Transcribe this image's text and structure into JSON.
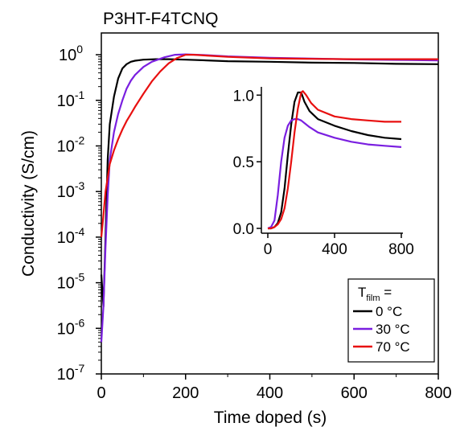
{
  "chart_data": [
    {
      "type": "line",
      "title": "P3HT-F4TCNQ",
      "xlabel": "Time doped (s)",
      "ylabel": "Conductivity (S/cm)",
      "xlim": [
        0,
        800
      ],
      "ylim": [
        1e-07,
        3
      ],
      "yscale": "log",
      "x_ticks": [
        "0",
        "200",
        "400",
        "600",
        "800"
      ],
      "y_ticks": [
        {
          "base": "10",
          "exp": "0"
        },
        {
          "base": "10",
          "exp": "-1"
        },
        {
          "base": "10",
          "exp": "-2"
        },
        {
          "base": "10",
          "exp": "-3"
        },
        {
          "base": "10",
          "exp": "-4"
        },
        {
          "base": "10",
          "exp": "-5"
        },
        {
          "base": "10",
          "exp": "-6"
        },
        {
          "base": "10",
          "exp": "-7"
        }
      ],
      "legend": {
        "title_main": "T",
        "title_sub": "film",
        "title_suffix": " =",
        "placement": "bottom-right"
      },
      "series": [
        {
          "name": "0 °C",
          "color": "#000000",
          "x": [
            0,
            5,
            10,
            15,
            20,
            30,
            40,
            50,
            60,
            70,
            80,
            100,
            130,
            160,
            200,
            250,
            300,
            400,
            500,
            600,
            700,
            800
          ],
          "y": [
            1.5e-05,
            3e-06,
            0.0001,
            0.005,
            0.03,
            0.12,
            0.3,
            0.5,
            0.62,
            0.7,
            0.74,
            0.78,
            0.8,
            0.8,
            0.78,
            0.75,
            0.72,
            0.7,
            0.67,
            0.66,
            0.63,
            0.62
          ]
        },
        {
          "name": "30 °C",
          "color": "#7a1fe0",
          "x": [
            0,
            5,
            10,
            15,
            20,
            30,
            40,
            50,
            60,
            70,
            80,
            100,
            120,
            150,
            175,
            200,
            250,
            300,
            400,
            500,
            600,
            700,
            800
          ],
          "y": [
            5e-07,
            3e-06,
            6e-05,
            0.0008,
            0.005,
            0.02,
            0.05,
            0.1,
            0.18,
            0.27,
            0.36,
            0.54,
            0.7,
            0.88,
            1.0,
            1.02,
            0.98,
            0.92,
            0.86,
            0.82,
            0.79,
            0.77,
            0.75
          ]
        },
        {
          "name": "70 °C",
          "color": "#e81010",
          "x": [
            0,
            5,
            10,
            15,
            20,
            30,
            40,
            50,
            60,
            70,
            80,
            100,
            120,
            140,
            160,
            180,
            200,
            220,
            250,
            300,
            400,
            500,
            600,
            700,
            800
          ],
          "y": [
            0.0001,
            0.0003,
            0.001,
            0.002,
            0.004,
            0.008,
            0.014,
            0.023,
            0.035,
            0.05,
            0.072,
            0.14,
            0.26,
            0.43,
            0.65,
            0.85,
            1.0,
            1.0,
            0.96,
            0.9,
            0.83,
            0.81,
            0.8,
            0.8,
            0.8
          ]
        }
      ]
    },
    {
      "type": "line",
      "title": "",
      "xlabel": "",
      "ylabel": "",
      "xlim": [
        0,
        800
      ],
      "ylim": [
        0,
        1.05
      ],
      "x_ticks": [
        "0",
        "400",
        "800"
      ],
      "y_ticks": [
        "0.0",
        "0.5",
        "1.0"
      ],
      "series": [
        {
          "name": "0 °C",
          "color": "#000000",
          "x": [
            0,
            20,
            40,
            60,
            80,
            100,
            120,
            140,
            160,
            180,
            200,
            220,
            250,
            300,
            400,
            500,
            600,
            700,
            800
          ],
          "y": [
            0.0,
            0.0,
            0.01,
            0.04,
            0.12,
            0.3,
            0.55,
            0.78,
            0.95,
            1.02,
            1.02,
            0.95,
            0.88,
            0.82,
            0.77,
            0.73,
            0.7,
            0.68,
            0.67
          ]
        },
        {
          "name": "30 °C",
          "color": "#7a1fe0",
          "x": [
            0,
            20,
            40,
            60,
            80,
            100,
            120,
            140,
            160,
            180,
            200,
            250,
            300,
            400,
            500,
            600,
            700,
            800
          ],
          "y": [
            0.0,
            0.01,
            0.06,
            0.25,
            0.5,
            0.68,
            0.77,
            0.81,
            0.82,
            0.82,
            0.81,
            0.76,
            0.72,
            0.68,
            0.65,
            0.63,
            0.62,
            0.61
          ]
        },
        {
          "name": "70 °C",
          "color": "#e81010",
          "x": [
            0,
            20,
            40,
            60,
            80,
            100,
            120,
            140,
            160,
            180,
            200,
            210,
            230,
            260,
            300,
            400,
            500,
            600,
            700,
            800
          ],
          "y": [
            0.0,
            0.0,
            0.01,
            0.03,
            0.07,
            0.15,
            0.3,
            0.5,
            0.72,
            0.9,
            1.02,
            1.03,
            1.0,
            0.94,
            0.89,
            0.84,
            0.82,
            0.81,
            0.8,
            0.8
          ]
        }
      ]
    }
  ]
}
